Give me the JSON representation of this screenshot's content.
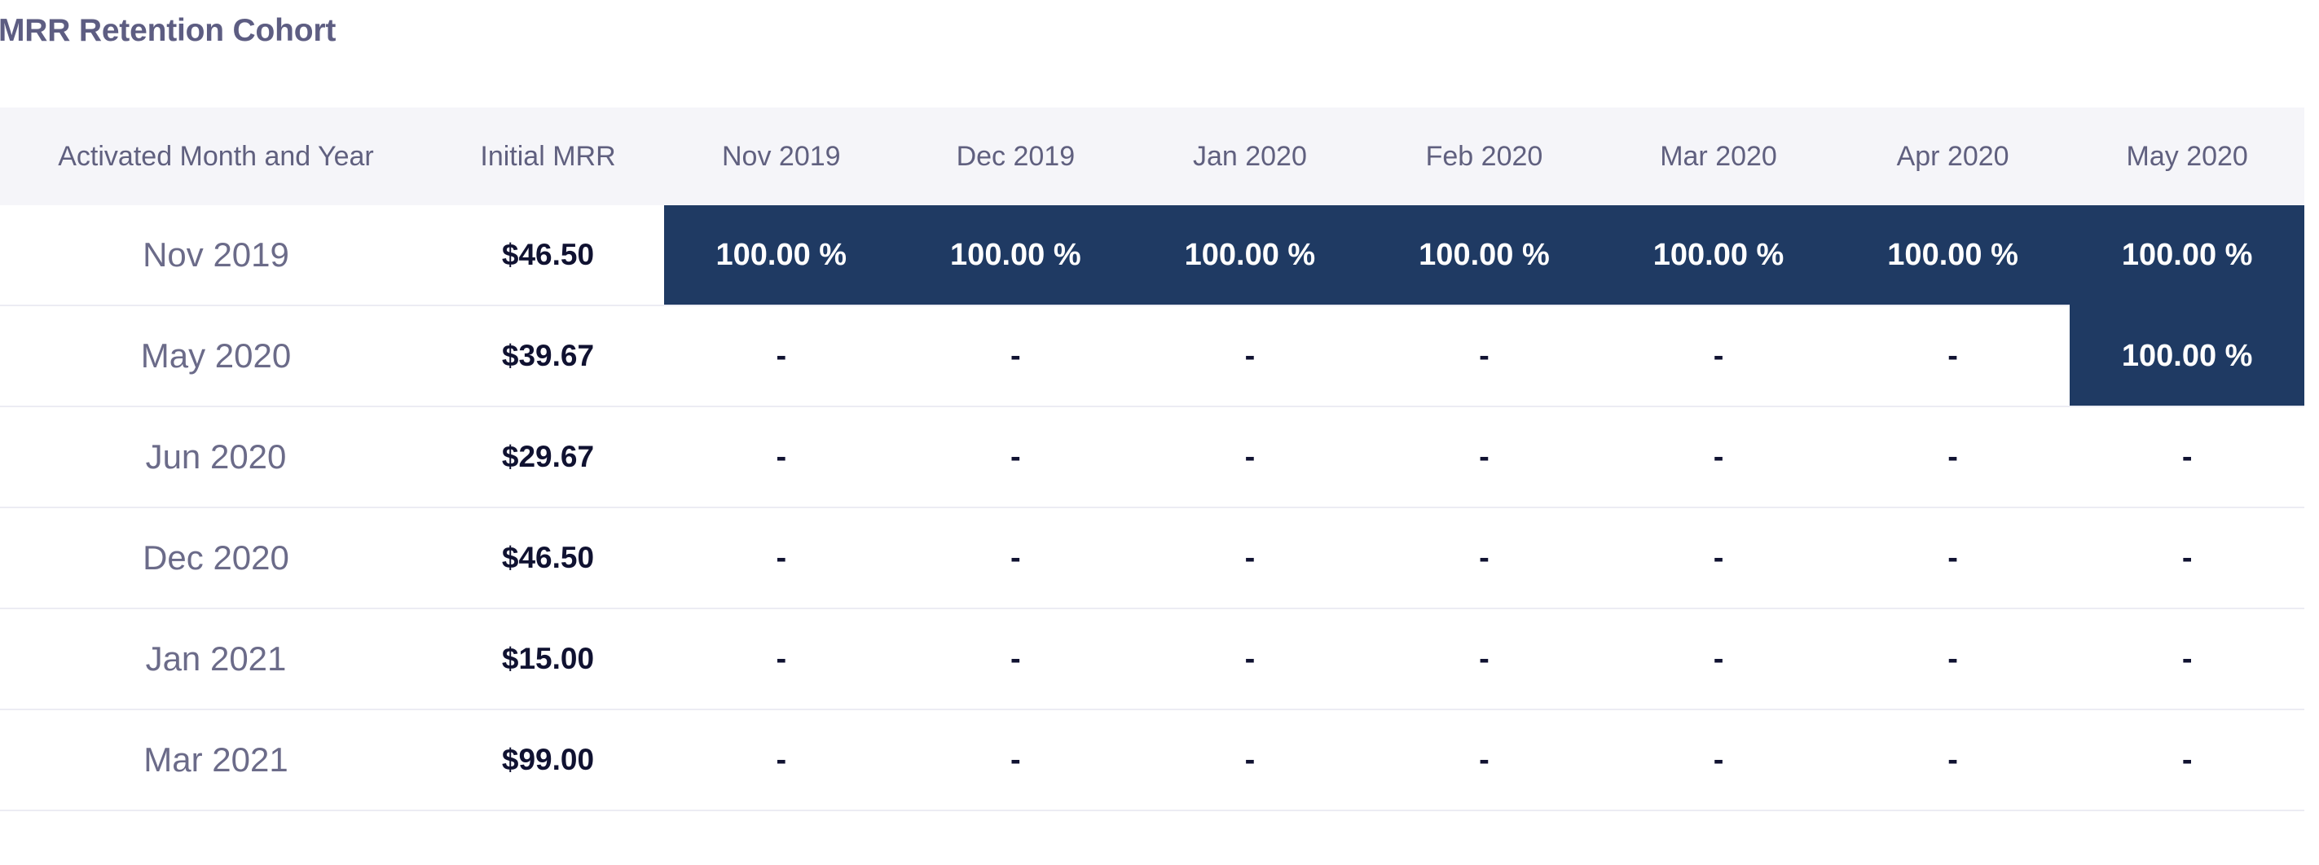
{
  "title": "MRR Retention Cohort",
  "colors": {
    "highlight_bg": "#1f3a63",
    "highlight_text": "#ffffff",
    "header_bg": "#f5f5f9"
  },
  "table": {
    "columns": [
      "Activated Month and Year",
      "Initial MRR",
      "Nov 2019",
      "Dec 2019",
      "Jan 2020",
      "Feb 2020",
      "Mar 2020",
      "Apr 2020",
      "May 2020"
    ],
    "rows": [
      {
        "cohort": "Nov 2019",
        "initial_mrr": "$46.50",
        "values": [
          "100.00 %",
          "100.00 %",
          "100.00 %",
          "100.00 %",
          "100.00 %",
          "100.00 %",
          "100.00 %"
        ]
      },
      {
        "cohort": "May 2020",
        "initial_mrr": "$39.67",
        "values": [
          "-",
          "-",
          "-",
          "-",
          "-",
          "-",
          "100.00 %"
        ]
      },
      {
        "cohort": "Jun 2020",
        "initial_mrr": "$29.67",
        "values": [
          "-",
          "-",
          "-",
          "-",
          "-",
          "-",
          "-"
        ]
      },
      {
        "cohort": "Dec 2020",
        "initial_mrr": "$46.50",
        "values": [
          "-",
          "-",
          "-",
          "-",
          "-",
          "-",
          "-"
        ]
      },
      {
        "cohort": "Jan 2021",
        "initial_mrr": "$15.00",
        "values": [
          "-",
          "-",
          "-",
          "-",
          "-",
          "-",
          "-"
        ]
      },
      {
        "cohort": "Mar 2021",
        "initial_mrr": "$99.00",
        "values": [
          "-",
          "-",
          "-",
          "-",
          "-",
          "-",
          "-"
        ]
      }
    ]
  }
}
